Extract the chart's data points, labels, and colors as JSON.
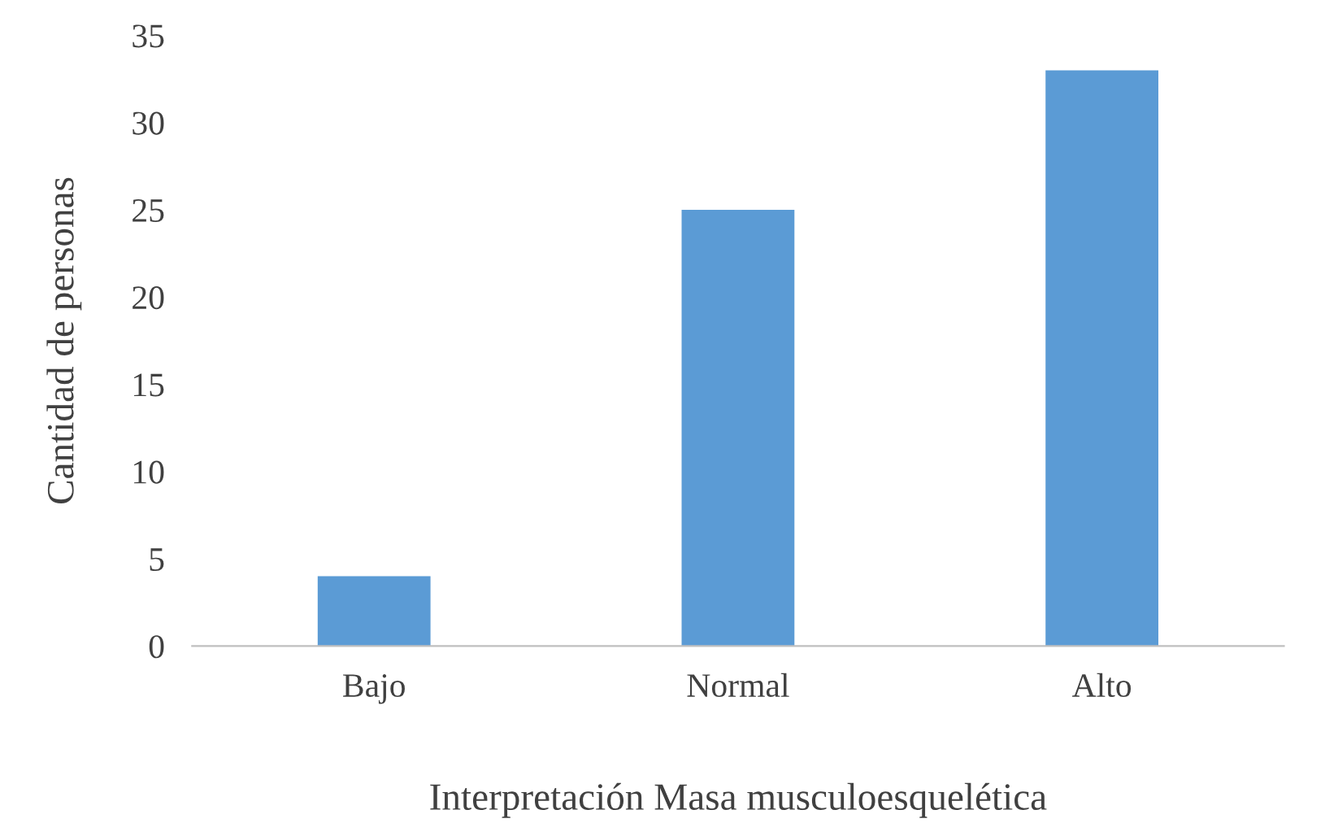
{
  "chart_data": {
    "type": "bar",
    "xlabel": "Interpretación Masa musculoesquelética",
    "ylabel": "Cantidad de personas",
    "categories": [
      "Bajo",
      "Normal",
      "Alto"
    ],
    "values": [
      4,
      25,
      33
    ],
    "color": "#5b9bd5",
    "ylim": [
      0,
      35
    ],
    "yticks": [
      0,
      5,
      10,
      15,
      20,
      25,
      30,
      35
    ],
    "grid": false,
    "legend": false
  }
}
